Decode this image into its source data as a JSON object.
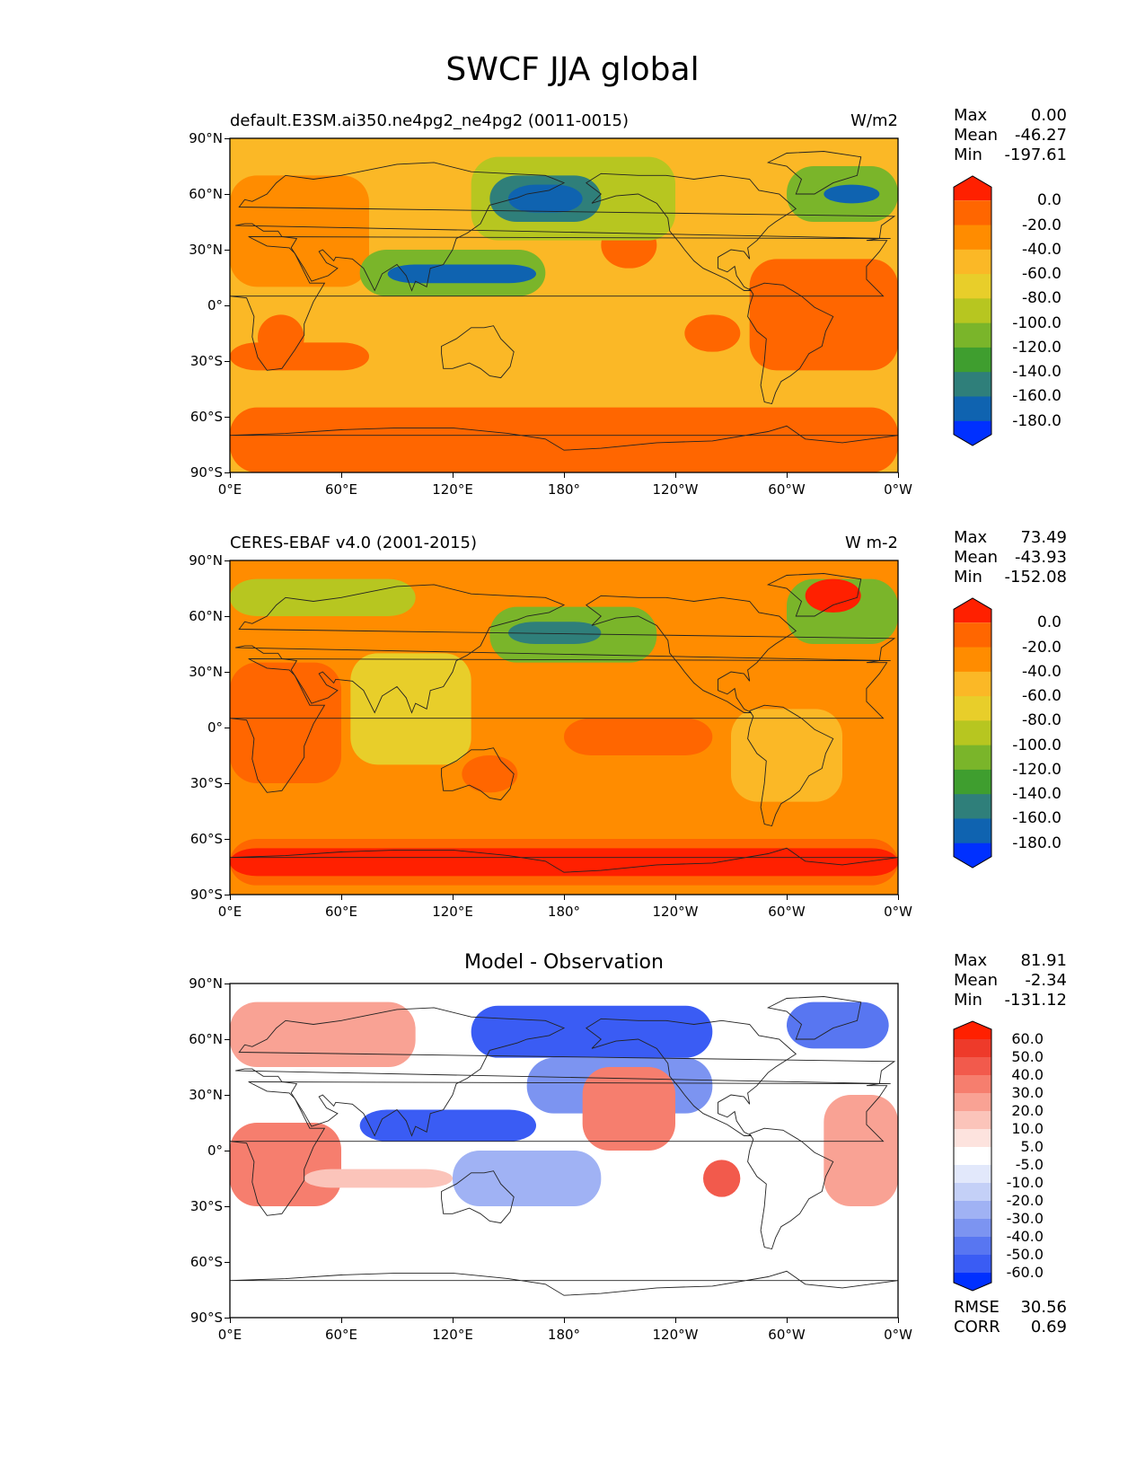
{
  "title": "SWCF JJA global",
  "axes": {
    "yticks": [
      "90°N",
      "60°N",
      "30°N",
      "0°",
      "30°S",
      "60°S",
      "90°S"
    ],
    "xticks": [
      "0°E",
      "60°E",
      "120°E",
      "180°",
      "120°W",
      "60°W",
      "0°W"
    ]
  },
  "panels": [
    {
      "left_title": "default.E3SM.ai350.ne4pg2_ne4pg2 (0011-0015)",
      "center_title": "",
      "units": "W/m2",
      "stats": [
        {
          "label": "Max",
          "value": "0.00"
        },
        {
          "label": "Mean",
          "value": "-46.27"
        },
        {
          "label": "Min",
          "value": "-197.61"
        }
      ],
      "colorbar": {
        "labels": [
          "0.0",
          "-20.0",
          "-40.0",
          "-60.0",
          "-80.0",
          "-100.0",
          "-120.0",
          "-140.0",
          "-160.0",
          "-180.0"
        ],
        "colors": [
          "#ff2000",
          "#ff6600",
          "#ff8c00",
          "#fbb826",
          "#e8ce2a",
          "#b7c620",
          "#7ab52a",
          "#3f9e2f",
          "#2f7f7a",
          "#0f63b0",
          "#0030ff"
        ]
      }
    },
    {
      "left_title": "CERES-EBAF v4.0 (2001-2015)",
      "center_title": "",
      "units": "W m-2",
      "stats": [
        {
          "label": "Max",
          "value": "73.49"
        },
        {
          "label": "Mean",
          "value": "-43.93"
        },
        {
          "label": "Min",
          "value": "-152.08"
        }
      ],
      "colorbar": {
        "labels": [
          "0.0",
          "-20.0",
          "-40.0",
          "-60.0",
          "-80.0",
          "-100.0",
          "-120.0",
          "-140.0",
          "-160.0",
          "-180.0"
        ],
        "colors": [
          "#ff2000",
          "#ff6600",
          "#ff8c00",
          "#fbb826",
          "#e8ce2a",
          "#b7c620",
          "#7ab52a",
          "#3f9e2f",
          "#2f7f7a",
          "#0f63b0",
          "#0030ff"
        ]
      }
    },
    {
      "left_title": "",
      "center_title": "Model - Observation",
      "units": "",
      "stats": [
        {
          "label": "Max",
          "value": "81.91"
        },
        {
          "label": "Mean",
          "value": "-2.34"
        },
        {
          "label": "Min",
          "value": "-131.12"
        }
      ],
      "extra_stats": [
        {
          "label": "RMSE",
          "value": "30.56"
        },
        {
          "label": "CORR",
          "value": "0.69"
        }
      ],
      "colorbar": {
        "labels": [
          "60.0",
          "50.0",
          "40.0",
          "30.0",
          "20.0",
          "10.0",
          "5.0",
          "-5.0",
          "-10.0",
          "-20.0",
          "-30.0",
          "-40.0",
          "-50.0",
          "-60.0"
        ],
        "colors": [
          "#ff2000",
          "#ee3a2a",
          "#f25a4c",
          "#f67e6e",
          "#f9a294",
          "#fbc4ba",
          "#fde3de",
          "#ffffff",
          "#e2e8fb",
          "#c4d0f7",
          "#a0b2f4",
          "#7c94f1",
          "#5876f1",
          "#3a5cf4",
          "#0030ff"
        ]
      }
    }
  ]
}
